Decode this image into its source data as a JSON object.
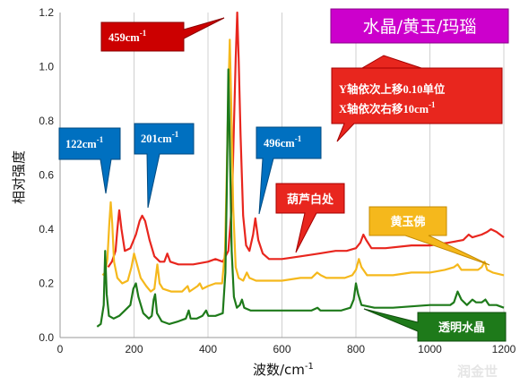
{
  "chart_data": {
    "type": "line",
    "xlabel": "波数/cm",
    "xlabel_sup": "-1",
    "ylabel": "相对强度",
    "xlim": [
      0,
      1200
    ],
    "ylim": [
      0,
      1.2
    ],
    "x_ticks": [
      0,
      200,
      400,
      600,
      800,
      1000,
      1200
    ],
    "y_ticks": [
      0.0,
      0.2,
      0.4,
      0.6,
      0.8,
      1.0,
      1.2
    ],
    "y_tick_labels": [
      "0.0",
      "0.2",
      "0.4",
      "0.6",
      "0.8",
      "1.0",
      "1.2"
    ],
    "grid": "vertical",
    "series": [
      {
        "name": "葫芦白处",
        "color": "#e8261e",
        "points": [
          [
            130,
            0.26
          ],
          [
            140,
            0.28
          ],
          [
            150,
            0.32
          ],
          [
            155,
            0.4
          ],
          [
            160,
            0.47
          ],
          [
            166,
            0.4
          ],
          [
            175,
            0.32
          ],
          [
            190,
            0.33
          ],
          [
            205,
            0.38
          ],
          [
            215,
            0.43
          ],
          [
            222,
            0.45
          ],
          [
            230,
            0.43
          ],
          [
            242,
            0.36
          ],
          [
            255,
            0.3
          ],
          [
            270,
            0.28
          ],
          [
            282,
            0.28
          ],
          [
            290,
            0.31
          ],
          [
            298,
            0.28
          ],
          [
            320,
            0.27
          ],
          [
            360,
            0.27
          ],
          [
            400,
            0.28
          ],
          [
            420,
            0.29
          ],
          [
            440,
            0.28
          ],
          [
            455,
            0.32
          ],
          [
            465,
            0.5
          ],
          [
            470,
            0.78
          ],
          [
            475,
            1.03
          ],
          [
            479,
            1.2
          ],
          [
            483,
            1.03
          ],
          [
            488,
            0.75
          ],
          [
            495,
            0.45
          ],
          [
            503,
            0.34
          ],
          [
            512,
            0.32
          ],
          [
            522,
            0.38
          ],
          [
            528,
            0.44
          ],
          [
            536,
            0.36
          ],
          [
            548,
            0.31
          ],
          [
            565,
            0.29
          ],
          [
            600,
            0.29
          ],
          [
            650,
            0.3
          ],
          [
            700,
            0.31
          ],
          [
            745,
            0.32
          ],
          [
            775,
            0.32
          ],
          [
            800,
            0.33
          ],
          [
            812,
            0.35
          ],
          [
            820,
            0.38
          ],
          [
            828,
            0.36
          ],
          [
            842,
            0.33
          ],
          [
            880,
            0.33
          ],
          [
            950,
            0.34
          ],
          [
            1000,
            0.34
          ],
          [
            1050,
            0.35
          ],
          [
            1090,
            0.36
          ],
          [
            1105,
            0.38
          ],
          [
            1115,
            0.37
          ],
          [
            1140,
            0.38
          ],
          [
            1155,
            0.39
          ],
          [
            1165,
            0.4
          ],
          [
            1180,
            0.39
          ],
          [
            1200,
            0.37
          ]
        ]
      },
      {
        "name": "黄玉佛",
        "color": "#f5b81c",
        "points": [
          [
            115,
            0.23
          ],
          [
            122,
            0.24
          ],
          [
            128,
            0.29
          ],
          [
            133,
            0.42
          ],
          [
            137,
            0.5
          ],
          [
            141,
            0.42
          ],
          [
            146,
            0.28
          ],
          [
            155,
            0.22
          ],
          [
            168,
            0.2
          ],
          [
            183,
            0.21
          ],
          [
            193,
            0.26
          ],
          [
            200,
            0.31
          ],
          [
            206,
            0.28
          ],
          [
            218,
            0.22
          ],
          [
            233,
            0.19
          ],
          [
            245,
            0.17
          ],
          [
            255,
            0.18
          ],
          [
            263,
            0.27
          ],
          [
            269,
            0.2
          ],
          [
            278,
            0.18
          ],
          [
            300,
            0.17
          ],
          [
            330,
            0.17
          ],
          [
            345,
            0.19
          ],
          [
            350,
            0.17
          ],
          [
            372,
            0.19
          ],
          [
            378,
            0.2
          ],
          [
            385,
            0.18
          ],
          [
            400,
            0.19
          ],
          [
            420,
            0.2
          ],
          [
            438,
            0.2
          ],
          [
            446,
            0.32
          ],
          [
            451,
            0.62
          ],
          [
            455,
            0.9
          ],
          [
            459,
            1.1
          ],
          [
            463,
            0.85
          ],
          [
            468,
            0.48
          ],
          [
            475,
            0.26
          ],
          [
            483,
            0.22
          ],
          [
            495,
            0.21
          ],
          [
            505,
            0.24
          ],
          [
            512,
            0.22
          ],
          [
            530,
            0.21
          ],
          [
            600,
            0.21
          ],
          [
            650,
            0.22
          ],
          [
            680,
            0.22
          ],
          [
            695,
            0.24
          ],
          [
            705,
            0.23
          ],
          [
            720,
            0.22
          ],
          [
            770,
            0.22
          ],
          [
            790,
            0.23
          ],
          [
            800,
            0.25
          ],
          [
            808,
            0.29
          ],
          [
            815,
            0.26
          ],
          [
            830,
            0.23
          ],
          [
            900,
            0.23
          ],
          [
            950,
            0.24
          ],
          [
            1000,
            0.24
          ],
          [
            1040,
            0.25
          ],
          [
            1065,
            0.26
          ],
          [
            1075,
            0.27
          ],
          [
            1085,
            0.25
          ],
          [
            1110,
            0.25
          ],
          [
            1130,
            0.25
          ],
          [
            1140,
            0.26
          ],
          [
            1148,
            0.28
          ],
          [
            1155,
            0.25
          ],
          [
            1170,
            0.24
          ],
          [
            1200,
            0.23
          ]
        ]
      },
      {
        "name": "透明水晶",
        "color": "#1e7a1a",
        "points": [
          [
            100,
            0.04
          ],
          [
            110,
            0.05
          ],
          [
            118,
            0.12
          ],
          [
            122,
            0.32
          ],
          [
            126,
            0.16
          ],
          [
            132,
            0.08
          ],
          [
            145,
            0.07
          ],
          [
            160,
            0.08
          ],
          [
            175,
            0.1
          ],
          [
            190,
            0.12
          ],
          [
            198,
            0.18
          ],
          [
            205,
            0.2
          ],
          [
            212,
            0.15
          ],
          [
            225,
            0.09
          ],
          [
            240,
            0.07
          ],
          [
            248,
            0.08
          ],
          [
            253,
            0.14
          ],
          [
            257,
            0.16
          ],
          [
            262,
            0.09
          ],
          [
            275,
            0.06
          ],
          [
            295,
            0.05
          ],
          [
            320,
            0.06
          ],
          [
            340,
            0.07
          ],
          [
            348,
            0.1
          ],
          [
            353,
            0.07
          ],
          [
            370,
            0.07
          ],
          [
            385,
            0.08
          ],
          [
            395,
            0.1
          ],
          [
            401,
            0.08
          ],
          [
            420,
            0.08
          ],
          [
            440,
            0.09
          ],
          [
            447,
            0.24
          ],
          [
            451,
            0.55
          ],
          [
            455,
            0.99
          ],
          [
            459,
            0.72
          ],
          [
            464,
            0.32
          ],
          [
            470,
            0.15
          ],
          [
            478,
            0.11
          ],
          [
            486,
            0.12
          ],
          [
            492,
            0.14
          ],
          [
            498,
            0.11
          ],
          [
            515,
            0.1
          ],
          [
            560,
            0.1
          ],
          [
            620,
            0.1
          ],
          [
            680,
            0.1
          ],
          [
            696,
            0.11
          ],
          [
            704,
            0.1
          ],
          [
            760,
            0.1
          ],
          [
            785,
            0.11
          ],
          [
            794,
            0.14
          ],
          [
            800,
            0.2
          ],
          [
            806,
            0.16
          ],
          [
            815,
            0.12
          ],
          [
            850,
            0.11
          ],
          [
            900,
            0.11
          ],
          [
            1000,
            0.12
          ],
          [
            1055,
            0.12
          ],
          [
            1065,
            0.13
          ],
          [
            1075,
            0.17
          ],
          [
            1085,
            0.14
          ],
          [
            1100,
            0.12
          ],
          [
            1115,
            0.14
          ],
          [
            1125,
            0.13
          ],
          [
            1140,
            0.13
          ],
          [
            1150,
            0.14
          ],
          [
            1160,
            0.12
          ],
          [
            1180,
            0.12
          ],
          [
            1200,
            0.11
          ]
        ]
      }
    ],
    "annotations": [
      {
        "text": "459cm",
        "sup": "-1"
      },
      {
        "text": "122cm",
        "sup": "-1"
      },
      {
        "text": "201cm",
        "sup": "-1"
      },
      {
        "text": "496cm",
        "sup": "-1"
      },
      {
        "text": "Y轴依次上移0.10单位"
      },
      {
        "text": "X轴依次右移10cm",
        "sup": "-1"
      },
      {
        "text": "葫芦白处"
      },
      {
        "text": "黄玉佛"
      },
      {
        "text": "透明水晶"
      }
    ],
    "title": "水晶/黄玉/玛瑙"
  },
  "colors": {
    "red_callout": "#cc0000",
    "blue_callout": "#0070c0",
    "title_box": "#cc00cc",
    "red_box": "#e8261e",
    "yellow_box": "#f5b81c",
    "green_box": "#1e7a1a"
  },
  "watermark": "润金世"
}
